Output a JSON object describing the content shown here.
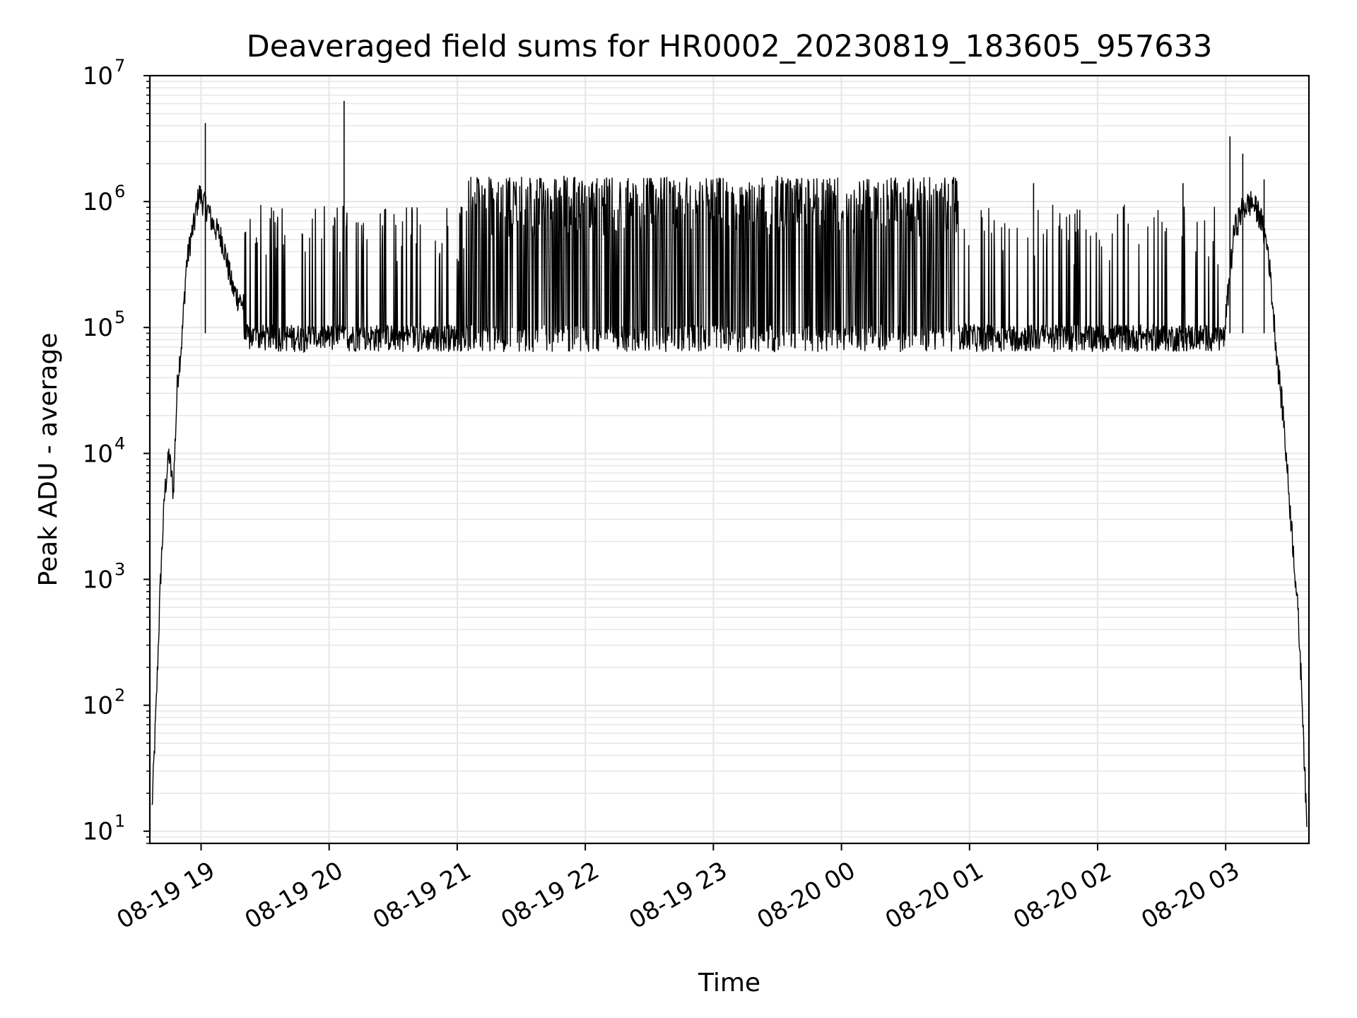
{
  "chart_data": {
    "type": "line",
    "title": "Deaveraged field sums for HR0002_20230819_183605_957633",
    "xlabel": "Time",
    "ylabel": "Peak ADU - average",
    "y_scale": "log",
    "ylim": [
      8,
      10000000
    ],
    "xlim": [
      "08-19 18:36",
      "08-20 03:39"
    ],
    "x_ticks": [
      "08-19 19",
      "08-19 20",
      "08-19 21",
      "08-19 22",
      "08-19 23",
      "08-20 00",
      "08-20 01",
      "08-20 02",
      "08-20 03"
    ],
    "y_tick_base": "10",
    "y_ticks": [
      {
        "exp": "1",
        "value": 10
      },
      {
        "exp": "2",
        "value": 100
      },
      {
        "exp": "3",
        "value": 1000
      },
      {
        "exp": "4",
        "value": 10000
      },
      {
        "exp": "5",
        "value": 100000
      },
      {
        "exp": "6",
        "value": 1000000
      },
      {
        "exp": "7",
        "value": 10000000
      }
    ],
    "grid": true,
    "grid_color": "#e6e6e6",
    "line_color": "#000000",
    "series": [
      {
        "x": [
          "08-19 18:37",
          "08-19 18:39",
          "08-19 18:41",
          "08-19 18:43",
          "08-19 18:45",
          "08-19 18:47",
          "08-19 18:49",
          "08-19 18:51",
          "08-19 18:53",
          "08-19 18:55",
          "08-19 18:57",
          "08-19 18:59",
          "08-19 19:01",
          "08-19 19:03",
          "08-19 19:05",
          "08-19 19:10",
          "08-19 19:15",
          "08-19 19:20",
          "08-19 19:25",
          "08-19 19:30",
          "08-19 19:40",
          "08-19 19:50",
          "08-19 20:00",
          "08-19 20:07",
          "08-19 20:10",
          "08-19 20:20",
          "08-19 20:30",
          "08-19 20:40",
          "08-19 20:50",
          "08-19 21:00",
          "08-19 21:10",
          "08-19 21:20",
          "08-19 21:30",
          "08-19 21:40",
          "08-19 21:50",
          "08-19 22:00",
          "08-19 22:20",
          "08-19 22:40",
          "08-19 23:00",
          "08-19 23:20",
          "08-19 23:40",
          "08-20 00:00",
          "08-20 00:20",
          "08-20 00:40",
          "08-20 01:00",
          "08-20 01:20",
          "08-20 01:40",
          "08-20 02:00",
          "08-20 02:20",
          "08-20 02:40",
          "08-20 03:00",
          "08-20 03:04",
          "08-20 03:08",
          "08-20 03:12",
          "08-20 03:16",
          "08-20 03:20",
          "08-20 03:24",
          "08-20 03:27",
          "08-20 03:30",
          "08-20 03:32",
          "08-20 03:34",
          "08-20 03:36",
          "08-20 03:38"
        ],
        "y": [
          15,
          100,
          1000,
          5000,
          10000,
          5000,
          40000,
          80000,
          300000,
          500000,
          700000,
          1200000,
          1000000,
          900000,
          700000,
          500000,
          200000,
          150000,
          120000,
          95000,
          90000,
          88000,
          85000,
          95000,
          92000,
          90000,
          88000,
          90000,
          88000,
          85000,
          600000,
          700000,
          900000,
          700000,
          600000,
          700000,
          650000,
          500000,
          600000,
          700000,
          650000,
          700000,
          500000,
          300000,
          100000,
          90000,
          88000,
          85000,
          90000,
          90000,
          120000,
          600000,
          900000,
          1000000,
          800000,
          400000,
          60000,
          20000,
          4000,
          1500,
          500,
          100,
          10
        ],
        "spikes": [
          {
            "x": "08-19 19:02",
            "y": 4200000
          },
          {
            "x": "08-19 20:07",
            "y": 6300000
          },
          {
            "x": "08-19 21:10",
            "y": 1500000
          },
          {
            "x": "08-19 21:50",
            "y": 1600000
          },
          {
            "x": "08-19 22:10",
            "y": 1550000
          },
          {
            "x": "08-19 23:30",
            "y": 1600000
          },
          {
            "x": "08-20 01:30",
            "y": 1400000
          },
          {
            "x": "08-20 02:40",
            "y": 1400000
          },
          {
            "x": "08-20 03:02",
            "y": 3300000
          },
          {
            "x": "08-20 03:08",
            "y": 2400000
          },
          {
            "x": "08-20 03:18",
            "y": 1500000
          }
        ]
      }
    ]
  }
}
